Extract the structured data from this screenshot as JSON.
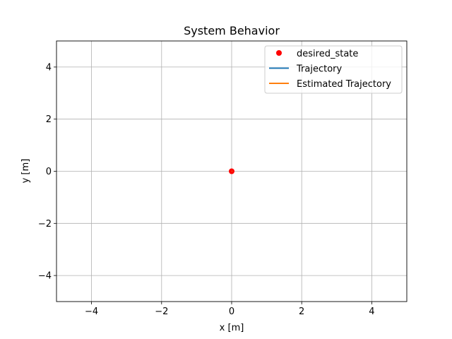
{
  "chart_data": {
    "type": "line",
    "title": "System Behavior",
    "xlabel": "x [m]",
    "ylabel": "y [m]",
    "xlim": [
      -5,
      5
    ],
    "ylim": [
      -5,
      5
    ],
    "xticks": [
      -4,
      -2,
      0,
      2,
      4
    ],
    "yticks": [
      -4,
      -2,
      0,
      2,
      4
    ],
    "xtick_labels": [
      "−4",
      "−2",
      "0",
      "2",
      "4"
    ],
    "ytick_labels": [
      "−4",
      "−2",
      "0",
      "2",
      "4"
    ],
    "grid": true,
    "legend_position": "top-right",
    "series": [
      {
        "name": "desired_state",
        "kind": "marker",
        "color": "#ff0000",
        "x": [
          0
        ],
        "y": [
          0
        ]
      },
      {
        "name": "Trajectory",
        "kind": "line",
        "color": "#1f77b4",
        "x": [
          0,
          0.02
        ],
        "y": [
          0,
          0
        ]
      },
      {
        "name": "Estimated Trajectory",
        "kind": "line",
        "color": "#ff7f0e",
        "x": [
          0,
          0.02
        ],
        "y": [
          0,
          0
        ]
      }
    ]
  }
}
